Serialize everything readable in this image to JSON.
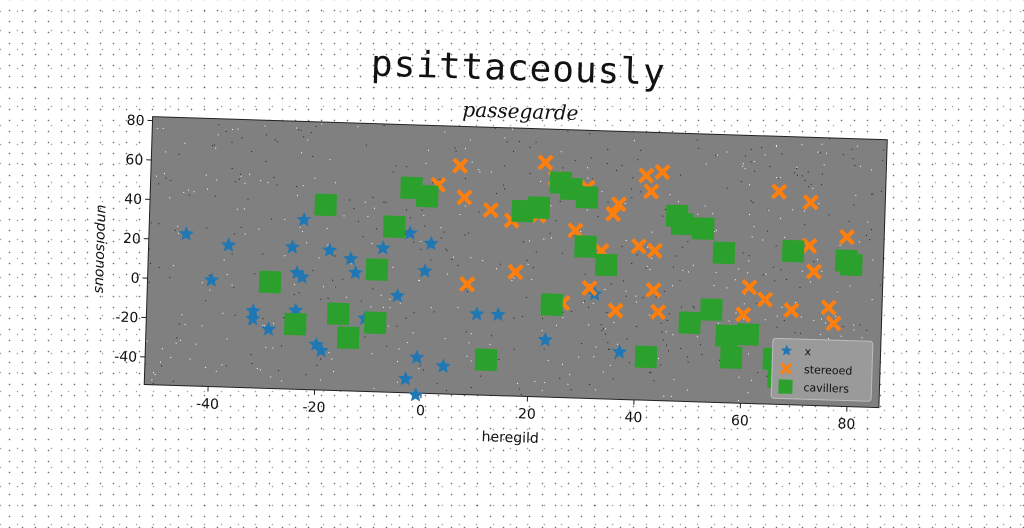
{
  "suptitle": "psittaceously",
  "chart_data": {
    "type": "scatter",
    "title": "passegarde",
    "xlabel": "heregild",
    "ylabel": "unpoisonous",
    "xlim": [
      -52,
      86
    ],
    "ylim": [
      -54,
      82
    ],
    "xticks": [
      -40,
      -20,
      0,
      20,
      40,
      60,
      80
    ],
    "yticks": [
      -40,
      -20,
      0,
      20,
      40,
      60,
      80
    ],
    "legend_position": "lower right",
    "series": [
      {
        "name": "x",
        "marker": "star",
        "color": "#1f77b4",
        "points": [
          [
            -45,
            23
          ],
          [
            -40,
            0
          ],
          [
            -37,
            18
          ],
          [
            -32,
            -15
          ],
          [
            -32,
            -19
          ],
          [
            -29,
            -24
          ],
          [
            -25,
            18
          ],
          [
            -24,
            5
          ],
          [
            -23,
            3
          ],
          [
            -24,
            -14
          ],
          [
            -23,
            32
          ],
          [
            -20,
            -31
          ],
          [
            -19,
            -34
          ],
          [
            -18,
            17
          ],
          [
            -14,
            13
          ],
          [
            -13,
            6
          ],
          [
            -11,
            -17
          ],
          [
            -8,
            19
          ],
          [
            -5,
            -5
          ],
          [
            -3,
            27
          ],
          [
            0,
            8
          ],
          [
            1,
            22
          ],
          [
            -1,
            -36
          ],
          [
            -3,
            -47
          ],
          [
            -1,
            -55
          ],
          [
            4,
            -40
          ],
          [
            10,
            -13
          ],
          [
            14,
            -13
          ],
          [
            23,
            -25
          ],
          [
            32,
            -1
          ],
          [
            37,
            -30
          ]
        ]
      },
      {
        "name": "stereoed",
        "marker": "x",
        "color": "#ff7f0e",
        "points": [
          [
            2,
            52
          ],
          [
            6,
            62
          ],
          [
            7,
            46
          ],
          [
            8,
            2
          ],
          [
            12,
            40
          ],
          [
            16,
            35
          ],
          [
            17,
            9
          ],
          [
            20,
            42
          ],
          [
            21,
            38
          ],
          [
            22,
            65
          ],
          [
            24,
            57
          ],
          [
            26,
            -6
          ],
          [
            28,
            31
          ],
          [
            30,
            53
          ],
          [
            31,
            2
          ],
          [
            33,
            21
          ],
          [
            35,
            40
          ],
          [
            36,
            45
          ],
          [
            36,
            -9
          ],
          [
            40,
            24
          ],
          [
            41,
            60
          ],
          [
            42,
            52
          ],
          [
            43,
            22
          ],
          [
            44,
            62
          ],
          [
            43,
            2
          ],
          [
            44,
            -9
          ],
          [
            60,
            -9
          ],
          [
            61,
            5
          ],
          [
            64,
            -1
          ],
          [
            66,
            54
          ],
          [
            69,
            -6
          ],
          [
            72,
            27
          ],
          [
            73,
            14
          ],
          [
            72,
            49
          ],
          [
            76,
            -4
          ],
          [
            77,
            -12
          ],
          [
            79,
            32
          ]
        ]
      },
      {
        "name": "cavillers",
        "marker": "square",
        "color": "#2ca02c",
        "points": [
          [
            -29,
            0
          ],
          [
            -24,
            -21
          ],
          [
            -19,
            40
          ],
          [
            -16,
            -15
          ],
          [
            -14,
            -27
          ],
          [
            -9,
            -19
          ],
          [
            -9,
            8
          ],
          [
            -6,
            30
          ],
          [
            -3,
            50
          ],
          [
            0,
            46
          ],
          [
            12,
            -36
          ],
          [
            18,
            40
          ],
          [
            21,
            42
          ],
          [
            24,
            -7
          ],
          [
            25,
            55
          ],
          [
            27,
            52
          ],
          [
            30,
            48
          ],
          [
            30,
            23
          ],
          [
            34,
            14
          ],
          [
            42,
            -32
          ],
          [
            47,
            40
          ],
          [
            48,
            36
          ],
          [
            50,
            -14
          ],
          [
            52,
            34
          ],
          [
            54,
            -7
          ],
          [
            56,
            22
          ],
          [
            57,
            -20
          ],
          [
            58,
            -31
          ],
          [
            61,
            -19
          ],
          [
            66,
            -31
          ],
          [
            67,
            -40
          ],
          [
            69,
            24
          ],
          [
            71,
            -34
          ],
          [
            79,
            20
          ],
          [
            80,
            18
          ]
        ]
      }
    ]
  }
}
